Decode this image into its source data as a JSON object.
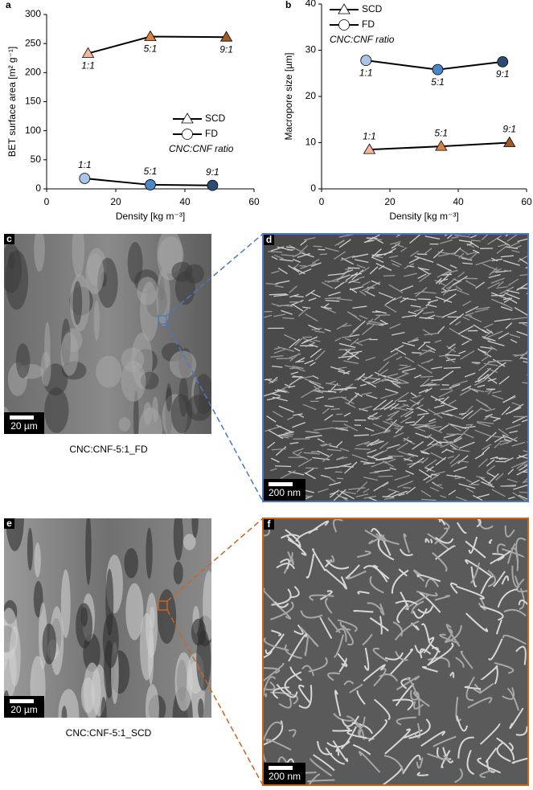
{
  "chart_data": [
    {
      "type": "line",
      "panel_label": "a",
      "xlabel": "Density [kg m⁻³]",
      "ylabel": "BET surface area [m² g⁻¹]",
      "xlim": [
        0,
        60
      ],
      "xticks": [
        0,
        20,
        40,
        60
      ],
      "ylim": [
        0,
        300
      ],
      "yticks": [
        0,
        50,
        100,
        150,
        200,
        250,
        300
      ],
      "legend_title": "CNC:CNF ratio",
      "legend_location": "center right",
      "series": [
        {
          "name": "SCD",
          "marker": "triangle",
          "color": "#000000",
          "x": [
            12,
            30,
            52
          ],
          "y": [
            233,
            262,
            261
          ],
          "point_colors": [
            "#f4b79c",
            "#d98240",
            "#a55a26"
          ],
          "point_labels": [
            "1:1",
            "5:1",
            "9:1"
          ]
        },
        {
          "name": "FD",
          "marker": "circle",
          "color": "#000000",
          "x": [
            11,
            30,
            48
          ],
          "y": [
            18,
            7,
            6
          ],
          "point_colors": [
            "#a9c5e6",
            "#4b86c8",
            "#2c4c78"
          ],
          "point_labels": [
            "1:1",
            "5:1",
            "9:1"
          ]
        }
      ]
    },
    {
      "type": "line",
      "panel_label": "b",
      "xlabel": "Density [kg m⁻³]",
      "ylabel": "Macropore size [µm]",
      "xlim": [
        0,
        60
      ],
      "xticks": [
        0,
        20,
        40,
        60
      ],
      "ylim": [
        0,
        40
      ],
      "yticks": [
        0,
        10,
        20,
        30,
        40
      ],
      "legend_title": "CNC:CNF ratio",
      "legend_location": "upper left",
      "series": [
        {
          "name": "SCD",
          "marker": "triangle",
          "color": "#000000",
          "x": [
            14,
            35,
            55
          ],
          "y": [
            8.5,
            9.2,
            10
          ],
          "point_colors": [
            "#f4b79c",
            "#d98240",
            "#a55a26"
          ],
          "point_labels": [
            "1:1",
            "5:1",
            "9:1"
          ]
        },
        {
          "name": "FD",
          "marker": "circle",
          "color": "#000000",
          "x": [
            13,
            34,
            53
          ],
          "y": [
            27.8,
            25.8,
            27.5
          ],
          "point_colors": [
            "#a9c5e6",
            "#4b86c8",
            "#2c4c78"
          ],
          "point_labels": [
            "1:1",
            "5:1",
            "9:1"
          ]
        }
      ]
    }
  ],
  "images": [
    {
      "label": "c",
      "caption": "CNC:CNF-5:1_FD",
      "scale_bar": "20 µm"
    },
    {
      "label": "d",
      "scale_bar": "200 nm"
    },
    {
      "label": "e",
      "caption": "CNC:CNF-5:1_SCD",
      "scale_bar": "20 µm"
    },
    {
      "label": "f",
      "scale_bar": "200 nm"
    }
  ]
}
